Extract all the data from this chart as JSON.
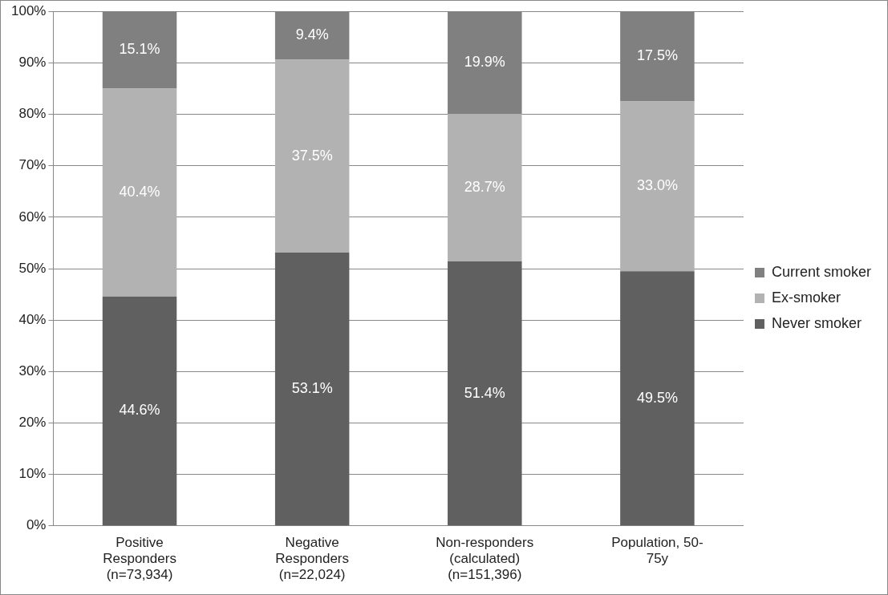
{
  "chart_data": {
    "type": "bar",
    "stacked": true,
    "categories": [
      "Positive Responders (n=73,934)",
      "Negative Responders (n=22,024)",
      "Non-responders (calculated) (n=151,396)",
      "Population, 50-75y"
    ],
    "series": [
      {
        "name": "Never smoker",
        "color": "#606060",
        "values": [
          44.6,
          53.1,
          51.4,
          49.5
        ],
        "value_labels": [
          "44.6%",
          "53.1%",
          "51.4%",
          "49.5%"
        ]
      },
      {
        "name": "Ex-smoker",
        "color": "#b2b2b2",
        "values": [
          40.4,
          37.5,
          28.7,
          33.0
        ],
        "value_labels": [
          "40.4%",
          "37.5%",
          "28.7%",
          "33.0%"
        ]
      },
      {
        "name": "Current smoker",
        "color": "#808080",
        "values": [
          15.1,
          9.4,
          19.9,
          17.5
        ],
        "value_labels": [
          "15.1%",
          "9.4%",
          "19.9%",
          "17.5%"
        ]
      }
    ],
    "ylim": [
      0,
      100
    ],
    "yticks": [
      {
        "value": 0,
        "label": "0%"
      },
      {
        "value": 10,
        "label": "10%"
      },
      {
        "value": 20,
        "label": "20%"
      },
      {
        "value": 30,
        "label": "30%"
      },
      {
        "value": 40,
        "label": "40%"
      },
      {
        "value": 50,
        "label": "50%"
      },
      {
        "value": 60,
        "label": "60%"
      },
      {
        "value": 70,
        "label": "70%"
      },
      {
        "value": 80,
        "label": "80%"
      },
      {
        "value": 90,
        "label": "90%"
      },
      {
        "value": 100,
        "label": "100%"
      }
    ],
    "grid": "y",
    "legend": "right"
  }
}
